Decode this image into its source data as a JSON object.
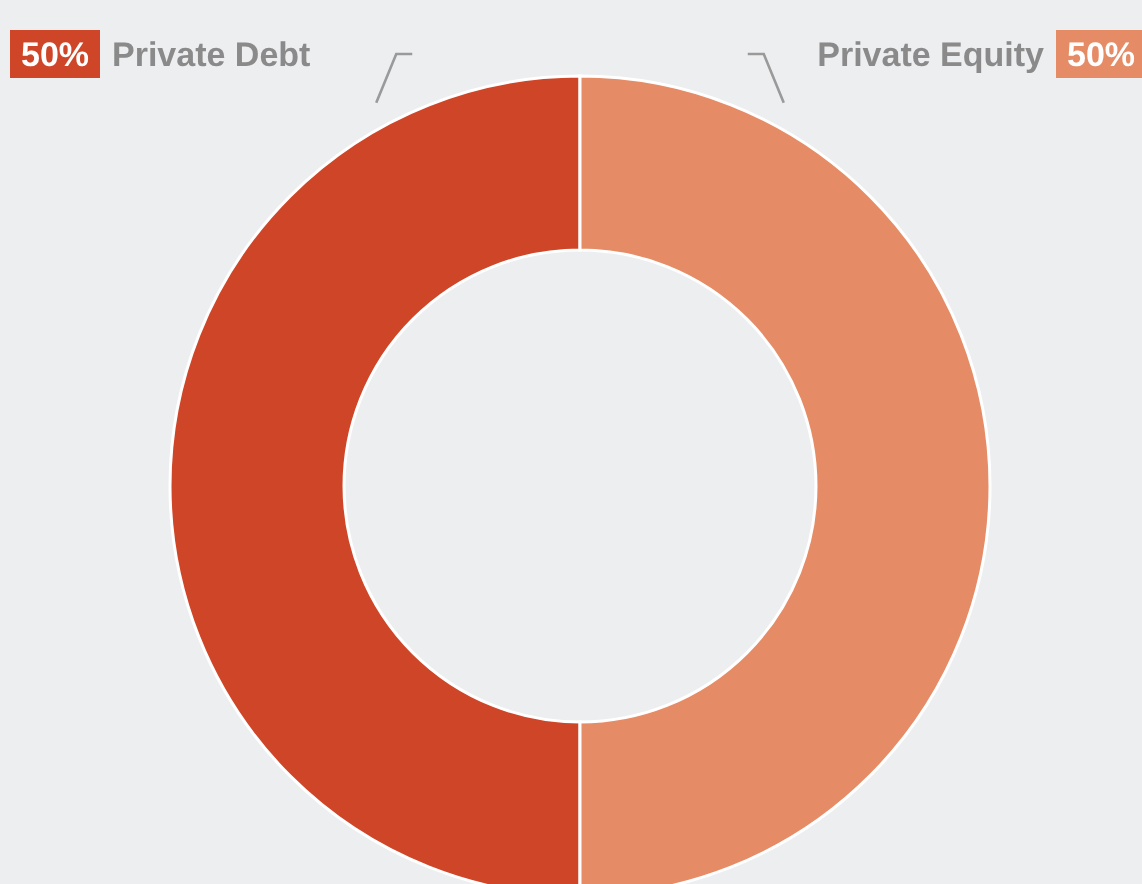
{
  "chart_data": {
    "type": "donut",
    "categories": [
      "Private Debt",
      "Private Equity"
    ],
    "values": [
      50,
      50
    ],
    "colors": [
      "#cf4527",
      "#e58b65"
    ],
    "value_labels": [
      "50%",
      "50%"
    ],
    "legend": "top"
  }
}
